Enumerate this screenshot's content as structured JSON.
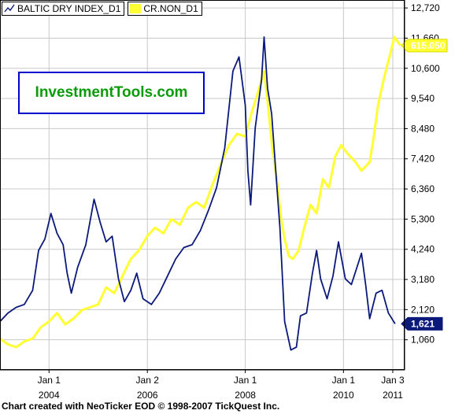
{
  "chart_data": {
    "type": "line",
    "legend": [
      {
        "name": "BALTIC DRY INDEX_D1",
        "color": "#0b1a7a"
      },
      {
        "name": "CR.NON_D1",
        "color": "#ffff33"
      }
    ],
    "y_axis": {
      "position": "right",
      "ticks": [
        "12,720",
        "11,660",
        "10,600",
        "9,540",
        "8,480",
        "7,420",
        "6,360",
        "5,300",
        "4,240",
        "3,180",
        "2,120",
        "1,060"
      ],
      "tick_values": [
        12720,
        11660,
        10600,
        9540,
        8480,
        7420,
        6360,
        5300,
        4240,
        3180,
        2120,
        1060
      ],
      "ylim": [
        0,
        13000
      ]
    },
    "x_axis": {
      "ticks": [
        {
          "month": "Jan 1",
          "year": "2004",
          "date": "2004-01-01"
        },
        {
          "month": "Jan 2",
          "year": "2006",
          "date": "2006-01-02"
        },
        {
          "month": "Jan 1",
          "year": "2008",
          "date": "2008-01-01"
        },
        {
          "month": "Jan 1",
          "year": "2010",
          "date": "2010-01-01"
        },
        {
          "month": "Jan 3",
          "year": "2011",
          "date": "2011-01-03"
        }
      ],
      "xlim": [
        "2003-01-01",
        "2011-04-01"
      ]
    },
    "grid": true,
    "series": [
      {
        "name": "BALTIC DRY INDEX_D1",
        "color": "#0b1a7a",
        "last_label": "1,621",
        "points": [
          [
            "2003-01-01",
            1700
          ],
          [
            "2003-03-01",
            2000
          ],
          [
            "2003-05-01",
            2200
          ],
          [
            "2003-07-01",
            2300
          ],
          [
            "2003-09-01",
            2800
          ],
          [
            "2003-10-15",
            4200
          ],
          [
            "2003-12-01",
            4600
          ],
          [
            "2004-01-15",
            5500
          ],
          [
            "2004-03-01",
            4800
          ],
          [
            "2004-04-15",
            4400
          ],
          [
            "2004-05-15",
            3400
          ],
          [
            "2004-06-15",
            2700
          ],
          [
            "2004-08-01",
            3600
          ],
          [
            "2004-10-01",
            4400
          ],
          [
            "2004-12-01",
            6000
          ],
          [
            "2005-01-15",
            5200
          ],
          [
            "2005-03-01",
            4500
          ],
          [
            "2005-04-15",
            4700
          ],
          [
            "2005-06-01",
            3200
          ],
          [
            "2005-07-15",
            2400
          ],
          [
            "2005-09-01",
            2800
          ],
          [
            "2005-10-15",
            3400
          ],
          [
            "2005-12-01",
            2500
          ],
          [
            "2006-02-01",
            2300
          ],
          [
            "2006-04-01",
            2700
          ],
          [
            "2006-06-01",
            3300
          ],
          [
            "2006-08-01",
            3900
          ],
          [
            "2006-10-01",
            4300
          ],
          [
            "2006-12-01",
            4400
          ],
          [
            "2007-02-01",
            4900
          ],
          [
            "2007-04-01",
            5600
          ],
          [
            "2007-06-01",
            6400
          ],
          [
            "2007-08-01",
            7800
          ],
          [
            "2007-10-01",
            10500
          ],
          [
            "2007-11-15",
            11000
          ],
          [
            "2008-01-01",
            9300
          ],
          [
            "2008-01-20",
            7000
          ],
          [
            "2008-02-10",
            5800
          ],
          [
            "2008-03-15",
            8500
          ],
          [
            "2008-05-01",
            10200
          ],
          [
            "2008-05-20",
            11700
          ],
          [
            "2008-06-15",
            9900
          ],
          [
            "2008-07-15",
            9000
          ],
          [
            "2008-08-15",
            7000
          ],
          [
            "2008-09-15",
            5000
          ],
          [
            "2008-10-20",
            1700
          ],
          [
            "2008-12-05",
            700
          ],
          [
            "2009-01-15",
            800
          ],
          [
            "2009-02-15",
            1900
          ],
          [
            "2009-04-01",
            2000
          ],
          [
            "2009-05-15",
            3400
          ],
          [
            "2009-06-15",
            4200
          ],
          [
            "2009-07-15",
            3200
          ],
          [
            "2009-09-01",
            2500
          ],
          [
            "2009-10-15",
            3300
          ],
          [
            "2009-11-25",
            4500
          ],
          [
            "2010-01-15",
            3200
          ],
          [
            "2010-03-01",
            3000
          ],
          [
            "2010-05-15",
            4100
          ],
          [
            "2010-06-15",
            3000
          ],
          [
            "2010-07-15",
            1800
          ],
          [
            "2010-09-01",
            2700
          ],
          [
            "2010-10-15",
            2800
          ],
          [
            "2010-12-01",
            2000
          ],
          [
            "2011-01-20",
            1621
          ]
        ]
      },
      {
        "name": "CR.NON_D1",
        "color": "#ffff33",
        "last_label": "615.050",
        "points": [
          [
            "2003-01-01",
            1100
          ],
          [
            "2003-03-01",
            900
          ],
          [
            "2003-05-01",
            800
          ],
          [
            "2003-07-01",
            1000
          ],
          [
            "2003-09-01",
            1100
          ],
          [
            "2003-11-01",
            1500
          ],
          [
            "2004-01-01",
            1700
          ],
          [
            "2004-03-01",
            2000
          ],
          [
            "2004-05-01",
            1600
          ],
          [
            "2004-07-01",
            1800
          ],
          [
            "2004-09-01",
            2100
          ],
          [
            "2004-11-01",
            2200
          ],
          [
            "2005-01-01",
            2300
          ],
          [
            "2005-03-01",
            2900
          ],
          [
            "2005-05-01",
            2700
          ],
          [
            "2005-07-01",
            3300
          ],
          [
            "2005-09-01",
            3900
          ],
          [
            "2005-11-01",
            4200
          ],
          [
            "2006-01-01",
            4700
          ],
          [
            "2006-03-01",
            5000
          ],
          [
            "2006-05-01",
            4800
          ],
          [
            "2006-07-01",
            5300
          ],
          [
            "2006-09-01",
            5100
          ],
          [
            "2006-11-01",
            5700
          ],
          [
            "2007-01-01",
            5900
          ],
          [
            "2007-03-01",
            5700
          ],
          [
            "2007-05-01",
            6500
          ],
          [
            "2007-07-01",
            7200
          ],
          [
            "2007-09-01",
            7900
          ],
          [
            "2007-11-01",
            8300
          ],
          [
            "2008-01-01",
            8200
          ],
          [
            "2008-02-15",
            9000
          ],
          [
            "2008-04-01",
            9700
          ],
          [
            "2008-05-20",
            10500
          ],
          [
            "2008-06-20",
            9200
          ],
          [
            "2008-07-20",
            7800
          ],
          [
            "2008-08-20",
            6800
          ],
          [
            "2008-09-25",
            5300
          ],
          [
            "2008-10-20",
            4600
          ],
          [
            "2008-11-20",
            4000
          ],
          [
            "2008-12-20",
            3900
          ],
          [
            "2009-02-01",
            4200
          ],
          [
            "2009-03-15",
            5000
          ],
          [
            "2009-05-01",
            5800
          ],
          [
            "2009-06-15",
            5500
          ],
          [
            "2009-08-01",
            6700
          ],
          [
            "2009-09-15",
            6400
          ],
          [
            "2009-11-01",
            7500
          ],
          [
            "2009-12-15",
            7900
          ],
          [
            "2010-02-01",
            7600
          ],
          [
            "2010-04-01",
            7300
          ],
          [
            "2010-05-15",
            7000
          ],
          [
            "2010-07-15",
            7300
          ],
          [
            "2010-08-15",
            8200
          ],
          [
            "2010-09-15",
            9300
          ],
          [
            "2010-11-01",
            10300
          ],
          [
            "2010-12-15",
            11100
          ],
          [
            "2011-01-15",
            11700
          ],
          [
            "2011-03-01",
            11400
          ]
        ]
      }
    ]
  },
  "watermark": "InvestmentTools.com",
  "footer": "Chart created with NeoTicker EOD © 1998-2007 TickQuest Inc.",
  "colors": {
    "background": "#ffffff",
    "grid": "#c8c8c8",
    "blue_series": "#0b1a7a",
    "yellow_series": "#ffff33",
    "brand": "#0a9a0a",
    "brand_border": "#0000cc"
  }
}
